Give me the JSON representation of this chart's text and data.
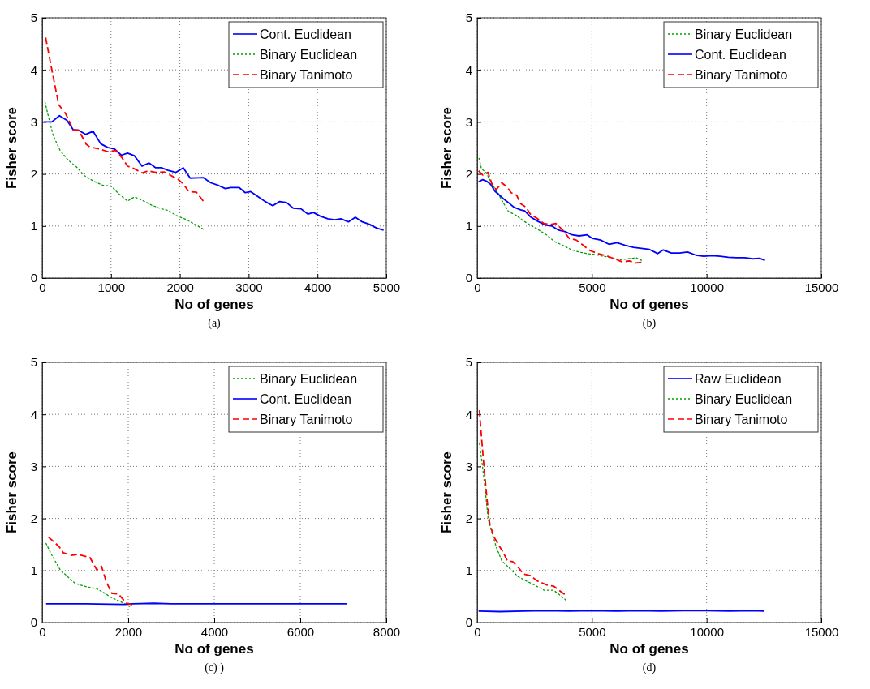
{
  "chart_data": [
    {
      "type": "line",
      "xlabel": "No of genes",
      "ylabel": "Fisher score",
      "xlim": [
        0,
        5000
      ],
      "ylim": [
        0,
        5
      ],
      "xticks": [
        0,
        1000,
        2000,
        3000,
        4000,
        5000
      ],
      "yticks": [
        0,
        1,
        2,
        3,
        4,
        5
      ],
      "grid": true,
      "legend": "top right",
      "annotations": [
        "(a)"
      ],
      "series": [
        {
          "name": "Cont. Euclidean",
          "color": "#0000ff",
          "line_style": "solid",
          "x": [
            20,
            140,
            250,
            360,
            450,
            530,
            630,
            740,
            850,
            950,
            1050,
            1150,
            1240,
            1340,
            1450,
            1550,
            1650,
            1730,
            1830,
            1940,
            2050,
            2150,
            2340,
            2450,
            2560,
            2660,
            2740,
            2860,
            2950,
            3030,
            3130,
            3240,
            3350,
            3450,
            3550,
            3650,
            3760,
            3860,
            3940,
            4040,
            4150,
            4250,
            4340,
            4450,
            4550,
            4650,
            4760,
            4860,
            4960
          ],
          "values": [
            3.0,
            3.0,
            3.12,
            3.03,
            2.85,
            2.84,
            2.76,
            2.82,
            2.58,
            2.51,
            2.48,
            2.36,
            2.4,
            2.35,
            2.15,
            2.21,
            2.12,
            2.12,
            2.07,
            2.03,
            2.12,
            1.92,
            1.93,
            1.83,
            1.78,
            1.72,
            1.74,
            1.74,
            1.64,
            1.66,
            1.57,
            1.47,
            1.39,
            1.47,
            1.45,
            1.34,
            1.33,
            1.23,
            1.26,
            1.19,
            1.14,
            1.12,
            1.14,
            1.08,
            1.17,
            1.08,
            1.03,
            0.96,
            0.92
          ]
        },
        {
          "name": "Binary Euclidean",
          "color": "#00a000",
          "line_style": "dotted",
          "x": [
            40,
            100,
            160,
            260,
            375,
            510,
            610,
            750,
            885,
            1000,
            1120,
            1240,
            1340,
            1460,
            1590,
            1710,
            1830,
            1950,
            2100,
            2220,
            2340
          ],
          "values": [
            3.38,
            3.05,
            2.74,
            2.45,
            2.27,
            2.12,
            1.97,
            1.86,
            1.78,
            1.77,
            1.61,
            1.48,
            1.56,
            1.49,
            1.4,
            1.34,
            1.3,
            1.2,
            1.12,
            1.03,
            0.94
          ]
        },
        {
          "name": "Binary Tanimoto",
          "color": "#ff0000",
          "line_style": "dashed",
          "x": [
            50,
            140,
            240,
            340,
            450,
            530,
            640,
            690,
            830,
            950,
            1070,
            1160,
            1240,
            1340,
            1450,
            1540,
            1650,
            1770,
            1870,
            1970,
            2050,
            2130,
            2240,
            2340
          ],
          "values": [
            4.62,
            4.0,
            3.33,
            3.16,
            2.85,
            2.84,
            2.57,
            2.52,
            2.48,
            2.43,
            2.45,
            2.31,
            2.15,
            2.1,
            2.02,
            2.06,
            2.03,
            2.04,
            1.97,
            1.9,
            1.81,
            1.66,
            1.65,
            1.48
          ]
        }
      ]
    },
    {
      "type": "line",
      "xlabel": "No of genes",
      "ylabel": "Fisher score",
      "xlim": [
        0,
        15000
      ],
      "ylim": [
        0,
        5
      ],
      "xticks": [
        0,
        5000,
        10000,
        15000
      ],
      "yticks": [
        0,
        1,
        2,
        3,
        4,
        5
      ],
      "grid": true,
      "legend": "top right",
      "annotations": [
        "(b)"
      ],
      "series": [
        {
          "name": "Binary Euclidean",
          "color": "#00a000",
          "line_style": "dotted",
          "x": [
            80,
            180,
            410,
            650,
            890,
            1120,
            1360,
            1720,
            2010,
            2310,
            2660,
            3020,
            3370,
            3730,
            4080,
            4440,
            4790,
            5150,
            5500,
            5860,
            6210,
            6570,
            6920,
            7160
          ],
          "values": [
            2.3,
            2.11,
            2.01,
            1.8,
            1.64,
            1.46,
            1.28,
            1.2,
            1.1,
            1.02,
            0.93,
            0.83,
            0.7,
            0.63,
            0.55,
            0.5,
            0.47,
            0.45,
            0.42,
            0.39,
            0.35,
            0.37,
            0.39,
            0.34
          ]
        },
        {
          "name": "Cont. Euclidean",
          "color": "#0000ff",
          "line_style": "solid",
          "x": [
            60,
            240,
            410,
            590,
            770,
            950,
            1180,
            1360,
            1600,
            1890,
            2070,
            2310,
            2600,
            2960,
            3250,
            3550,
            3850,
            4140,
            4440,
            4790,
            5030,
            5380,
            5740,
            6100,
            6450,
            6810,
            7160,
            7510,
            7870,
            8110,
            8460,
            8820,
            9170,
            9530,
            9880,
            10240,
            10590,
            10950,
            11300,
            11660,
            12010,
            12310,
            12540
          ],
          "values": [
            1.85,
            1.89,
            1.86,
            1.8,
            1.67,
            1.6,
            1.51,
            1.45,
            1.36,
            1.31,
            1.29,
            1.18,
            1.1,
            1.02,
            1.0,
            0.92,
            0.89,
            0.83,
            0.81,
            0.83,
            0.76,
            0.73,
            0.65,
            0.68,
            0.63,
            0.59,
            0.57,
            0.55,
            0.47,
            0.54,
            0.48,
            0.48,
            0.5,
            0.44,
            0.42,
            0.43,
            0.42,
            0.4,
            0.39,
            0.39,
            0.37,
            0.38,
            0.34
          ]
        },
        {
          "name": "Binary Tanimoto",
          "color": "#ff0000",
          "line_style": "dashed",
          "x": [
            60,
            240,
            470,
            650,
            830,
            1070,
            1300,
            1480,
            1720,
            1890,
            2130,
            2310,
            2600,
            2900,
            3200,
            3430,
            3730,
            4020,
            4320,
            4620,
            4910,
            5270,
            5620,
            5980,
            6330,
            6630,
            6920,
            7160
          ],
          "values": [
            2.06,
            1.98,
            2.03,
            1.8,
            1.7,
            1.83,
            1.75,
            1.64,
            1.59,
            1.43,
            1.36,
            1.23,
            1.15,
            1.05,
            1.03,
            1.05,
            0.92,
            0.76,
            0.73,
            0.63,
            0.53,
            0.47,
            0.43,
            0.37,
            0.31,
            0.33,
            0.29,
            0.3
          ]
        }
      ]
    },
    {
      "type": "line",
      "xlabel": "No of genes",
      "ylabel": "Fisher score",
      "xlim": [
        0,
        8000
      ],
      "ylim": [
        0,
        5
      ],
      "xticks": [
        0,
        2000,
        4000,
        6000,
        8000
      ],
      "yticks": [
        0,
        1,
        2,
        3,
        4,
        5
      ],
      "grid": true,
      "legend": "top right",
      "annotations": [
        "(c) )"
      ],
      "series": [
        {
          "name": "Binary Euclidean",
          "color": "#00a000",
          "line_style": "dotted",
          "x": [
            90,
            200,
            420,
            580,
            770,
            1020,
            1270,
            1460,
            1590,
            1770,
            1900,
            2030
          ],
          "values": [
            1.52,
            1.33,
            1.01,
            0.89,
            0.75,
            0.69,
            0.65,
            0.56,
            0.49,
            0.42,
            0.37,
            0.31
          ]
        },
        {
          "name": "Cont. Euclidean",
          "color": "#0000ff",
          "line_style": "solid",
          "x": [
            90,
            1000,
            1900,
            2100,
            2600,
            3000,
            4000,
            5000,
            6000,
            7080
          ],
          "values": [
            0.36,
            0.36,
            0.35,
            0.36,
            0.37,
            0.36,
            0.36,
            0.36,
            0.36,
            0.36
          ]
        },
        {
          "name": "Binary Tanimoto",
          "color": "#ff0000",
          "line_style": "dashed",
          "x": [
            150,
            260,
            390,
            490,
            670,
            830,
            1110,
            1270,
            1380,
            1490,
            1620,
            1770,
            1960,
            2090
          ],
          "values": [
            1.64,
            1.56,
            1.46,
            1.34,
            1.29,
            1.31,
            1.25,
            1.01,
            1.08,
            0.78,
            0.56,
            0.55,
            0.37,
            0.34
          ]
        }
      ]
    },
    {
      "type": "line",
      "xlabel": "No of genes",
      "ylabel": "Fisher score",
      "xlim": [
        0,
        15000
      ],
      "ylim": [
        0,
        5
      ],
      "xticks": [
        0,
        5000,
        10000,
        15000
      ],
      "yticks": [
        0,
        1,
        2,
        3,
        4,
        5
      ],
      "grid": true,
      "legend": "top right",
      "annotations": [
        "(d)"
      ],
      "series": [
        {
          "name": "Raw Euclidean",
          "color": "#0000ff",
          "line_style": "solid",
          "x": [
            60,
            1000,
            2000,
            3000,
            4000,
            5000,
            6000,
            7000,
            8000,
            9000,
            10000,
            11000,
            12000,
            12500
          ],
          "values": [
            0.22,
            0.21,
            0.22,
            0.23,
            0.22,
            0.23,
            0.22,
            0.23,
            0.22,
            0.23,
            0.23,
            0.22,
            0.23,
            0.22
          ]
        },
        {
          "name": "Binary Euclidean",
          "color": "#00a000",
          "line_style": "dotted",
          "x": [
            95,
            210,
            360,
            480,
            650,
            830,
            1070,
            1370,
            1790,
            2140,
            2500,
            2920,
            3330,
            3570,
            3870
          ],
          "values": [
            3.45,
            3.08,
            2.5,
            1.98,
            1.72,
            1.45,
            1.19,
            1.06,
            0.88,
            0.8,
            0.72,
            0.62,
            0.62,
            0.54,
            0.43
          ]
        },
        {
          "name": "Binary Tanimoto",
          "color": "#ff0000",
          "line_style": "dashed",
          "x": [
            95,
            180,
            300,
            420,
            540,
            710,
            950,
            1130,
            1310,
            1550,
            1790,
            2020,
            2320,
            2620,
            3040,
            3330,
            3570,
            3810
          ],
          "values": [
            4.08,
            3.6,
            2.97,
            2.4,
            1.92,
            1.66,
            1.48,
            1.35,
            1.19,
            1.17,
            1.06,
            0.93,
            0.9,
            0.8,
            0.72,
            0.7,
            0.62,
            0.54
          ]
        }
      ]
    }
  ]
}
